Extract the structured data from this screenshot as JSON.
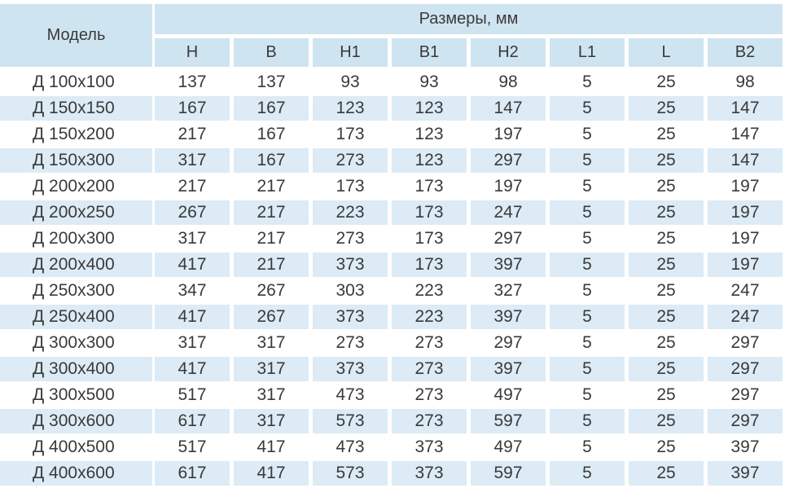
{
  "header": {
    "model": "Модель",
    "group": "Размеры, мм",
    "columns": [
      "H",
      "B",
      "H1",
      "B1",
      "H2",
      "L1",
      "L",
      "B2"
    ]
  },
  "table": {
    "rows": [
      [
        "Д 100x100",
        137,
        137,
        93,
        93,
        98,
        5,
        25,
        98
      ],
      [
        "Д 150x150",
        167,
        167,
        123,
        123,
        147,
        5,
        25,
        147
      ],
      [
        "Д 150x200",
        217,
        167,
        173,
        123,
        197,
        5,
        25,
        147
      ],
      [
        "Д 150x300",
        317,
        167,
        273,
        123,
        297,
        5,
        25,
        147
      ],
      [
        "Д 200x200",
        217,
        217,
        173,
        173,
        197,
        5,
        25,
        197
      ],
      [
        "Д 200x250",
        267,
        217,
        223,
        173,
        247,
        5,
        25,
        197
      ],
      [
        "Д 200x300",
        317,
        217,
        273,
        173,
        297,
        5,
        25,
        197
      ],
      [
        "Д 200x400",
        417,
        217,
        373,
        173,
        397,
        5,
        25,
        197
      ],
      [
        "Д 250x300",
        347,
        267,
        303,
        223,
        327,
        5,
        25,
        247
      ],
      [
        "Д 250x400",
        417,
        267,
        373,
        223,
        397,
        5,
        25,
        247
      ],
      [
        "Д 300x300",
        317,
        317,
        273,
        273,
        297,
        5,
        25,
        297
      ],
      [
        "Д 300x400",
        417,
        317,
        373,
        273,
        397,
        5,
        25,
        297
      ],
      [
        "Д 300x500",
        517,
        317,
        473,
        273,
        497,
        5,
        25,
        297
      ],
      [
        "Д 300x600",
        617,
        317,
        573,
        273,
        597,
        5,
        25,
        297
      ],
      [
        "Д 400x500",
        517,
        417,
        473,
        373,
        497,
        5,
        25,
        397
      ],
      [
        "Д 400x600",
        617,
        417,
        573,
        373,
        597,
        5,
        25,
        397
      ]
    ]
  }
}
